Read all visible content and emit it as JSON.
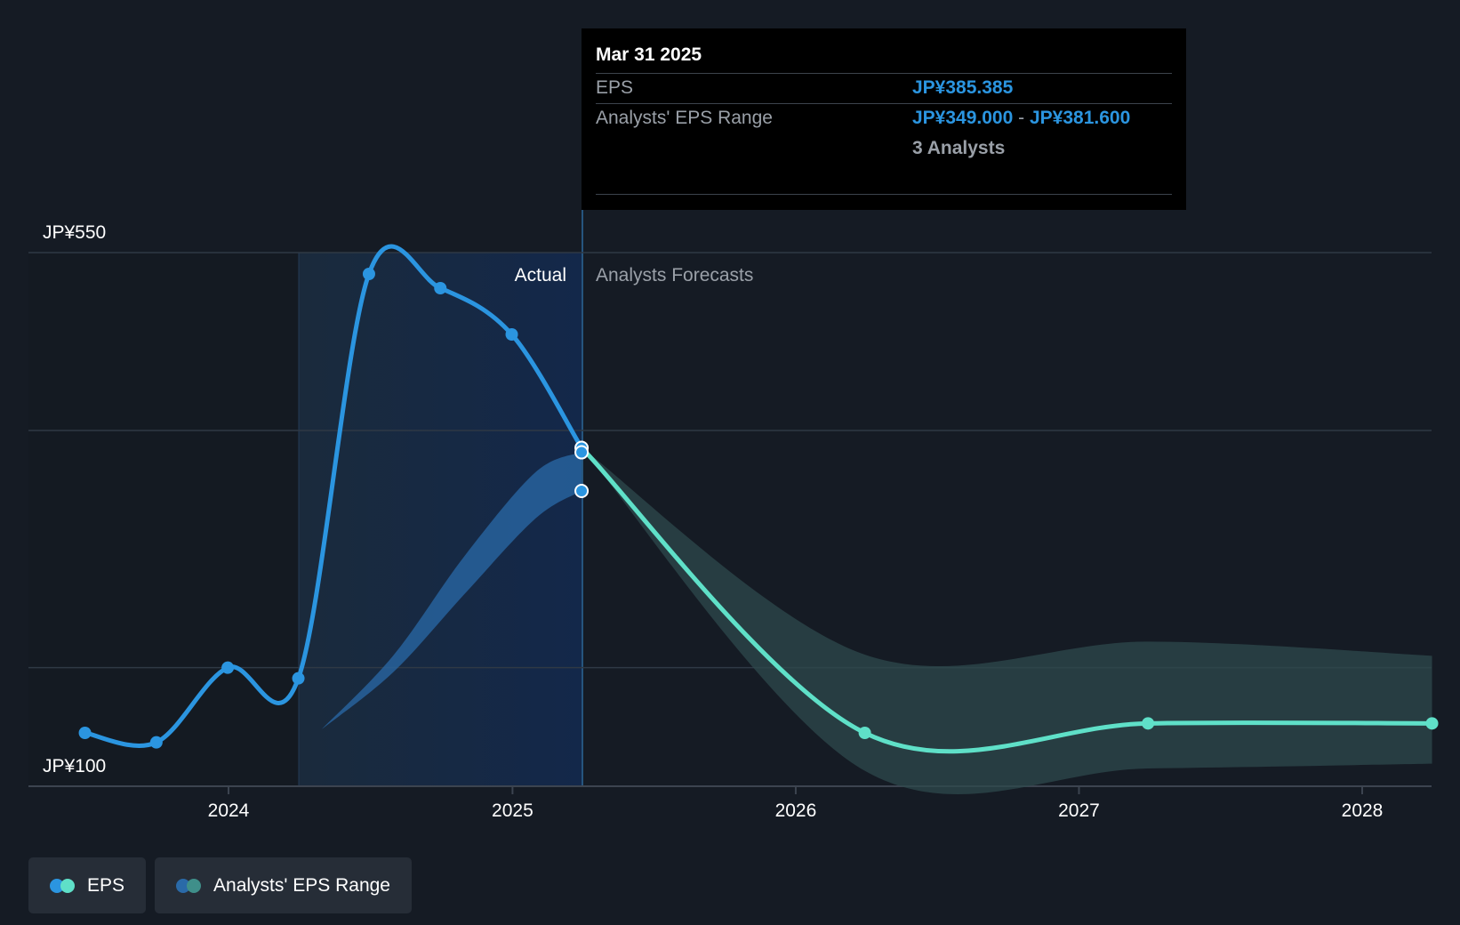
{
  "chart_data": {
    "type": "line",
    "y_axis": {
      "min_label": "JP¥100",
      "max_label": "JP¥550",
      "ylim": [
        100,
        550
      ],
      "gridlines": [
        550,
        400,
        200
      ]
    },
    "x_axis": {
      "tick_labels": [
        "2024",
        "2025",
        "2026",
        "2027",
        "2028"
      ]
    },
    "sections": {
      "actual_label": "Actual",
      "forecast_label": "Analysts Forecasts"
    },
    "series": [
      {
        "name": "EPS",
        "color": "#2b95e0",
        "points": [
          {
            "x": "2023-06-30",
            "y": 145
          },
          {
            "x": "2023-09-30",
            "y": 137
          },
          {
            "x": "2023-12-31",
            "y": 200
          },
          {
            "x": "2024-03-31",
            "y": 191
          },
          {
            "x": "2024-06-30",
            "y": 532
          },
          {
            "x": "2024-09-30",
            "y": 520
          },
          {
            "x": "2024-12-31",
            "y": 481
          },
          {
            "x": "2025-03-31",
            "y": 385.385
          }
        ]
      },
      {
        "name": "EPS",
        "color": "#5fe0c8",
        "points": [
          {
            "x": "2025-03-31",
            "y": 385.385
          },
          {
            "x": "2026-03-31",
            "y": 145
          },
          {
            "x": "2027-03-31",
            "y": 153
          },
          {
            "x": "2028-03-31",
            "y": 153
          }
        ]
      }
    ],
    "ranges": [
      {
        "name": "Analysts' EPS Range",
        "color": "#2a6aa8",
        "points": [
          {
            "x": "2024-04-30",
            "low": 148,
            "high": 148
          },
          {
            "x": "2024-07-31",
            "low": 196,
            "high": 210
          },
          {
            "x": "2024-10-31",
            "low": 262,
            "high": 294
          },
          {
            "x": "2025-01-31",
            "low": 326,
            "high": 365
          },
          {
            "x": "2025-03-31",
            "low": 349.0,
            "high": 381.6
          }
        ]
      },
      {
        "name": "Analysts' EPS Range",
        "color": "#2e4a4c",
        "points": [
          {
            "x": "2025-03-31",
            "low": 385.385,
            "high": 385.385
          },
          {
            "x": "2026-03-31",
            "low": 113,
            "high": 211
          },
          {
            "x": "2027-03-31",
            "low": 115,
            "high": 222
          },
          {
            "x": "2028-03-31",
            "low": 119,
            "high": 210
          }
        ]
      }
    ]
  },
  "tooltip": {
    "date": "Mar 31 2025",
    "eps_label": "EPS",
    "eps_value": "JP¥385.385",
    "range_label": "Analysts' EPS Range",
    "range_low": "JP¥349.000",
    "range_sep": "-",
    "range_high": "JP¥381.600",
    "analysts": "3 Analysts"
  },
  "legend": [
    {
      "label": "EPS",
      "colors": [
        "#2b95e0",
        "#5fe0c8"
      ]
    },
    {
      "label": "Analysts' EPS Range",
      "colors": [
        "#2a6aa8",
        "#3f8f8a"
      ]
    }
  ]
}
